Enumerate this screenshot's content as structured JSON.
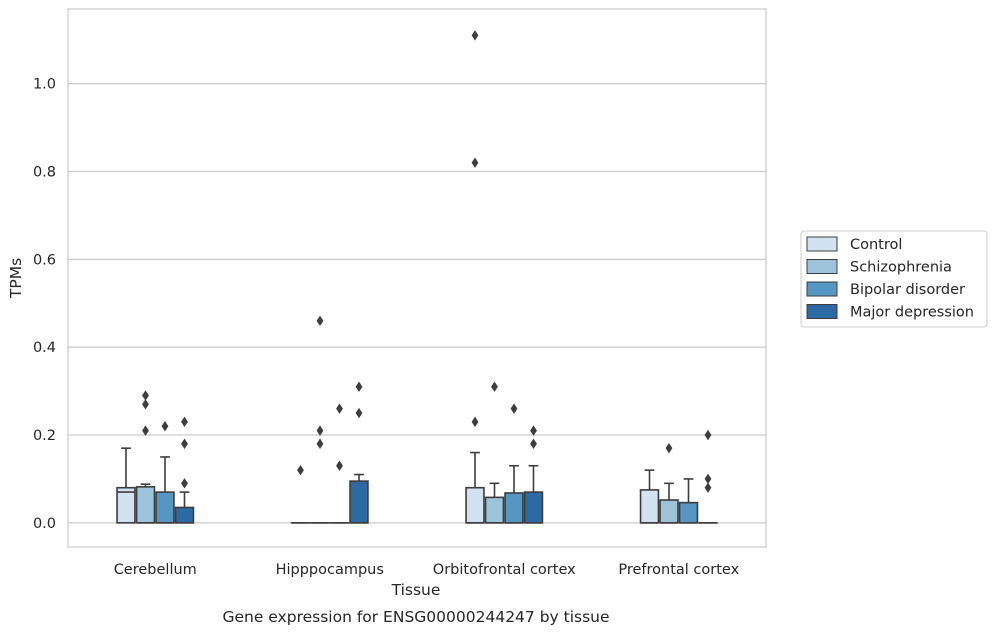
{
  "caption": "Gene expression for ENSG00000244247 by tissue",
  "chart_data": {
    "type": "box",
    "title": "",
    "xlabel": "Tissue",
    "ylabel": "TPMs",
    "categories": [
      "Cerebellum",
      "Hipppocampus",
      "Orbitofrontal cortex",
      "Prefrontal cortex"
    ],
    "ylim": [
      -0.055,
      1.17
    ],
    "yticks": [
      "0.0",
      "0.2",
      "0.4",
      "0.6",
      "0.8",
      "1.0"
    ],
    "ytick_values": [
      0,
      0.2,
      0.4,
      0.6,
      0.8,
      1.0
    ],
    "grid": true,
    "legend_position": "right",
    "series": [
      {
        "name": "Control",
        "color": "#d1e2f0",
        "boxes": [
          {
            "q1": 0,
            "median": 0.07,
            "q3": 0.08,
            "whisker_low": 0,
            "whisker_high": 0.17,
            "outliers": []
          },
          {
            "q1": 0,
            "median": 0,
            "q3": 0,
            "whisker_low": 0,
            "whisker_high": 0,
            "outliers": [
              0.12
            ]
          },
          {
            "q1": 0,
            "median": 0,
            "q3": 0.08,
            "whisker_low": 0,
            "whisker_high": 0.16,
            "outliers": [
              0.23,
              0.82,
              1.11
            ]
          },
          {
            "q1": 0,
            "median": 0,
            "q3": 0.075,
            "whisker_low": 0,
            "whisker_high": 0.12,
            "outliers": []
          }
        ]
      },
      {
        "name": "Schizophrenia",
        "color": "#9dc3db",
        "boxes": [
          {
            "q1": 0,
            "median": 0,
            "q3": 0.082,
            "whisker_low": 0,
            "whisker_high": 0.088,
            "outliers": [
              0.21,
              0.27,
              0.29
            ]
          },
          {
            "q1": 0,
            "median": 0,
            "q3": 0,
            "whisker_low": 0,
            "whisker_high": 0,
            "outliers": [
              0.18,
              0.21,
              0.46
            ]
          },
          {
            "q1": 0,
            "median": 0,
            "q3": 0.058,
            "whisker_low": 0,
            "whisker_high": 0.09,
            "outliers": [
              0.31
            ]
          },
          {
            "q1": 0,
            "median": 0,
            "q3": 0.052,
            "whisker_low": 0,
            "whisker_high": 0.09,
            "outliers": [
              0.17
            ]
          }
        ]
      },
      {
        "name": "Bipolar disorder",
        "color": "#5596c3",
        "boxes": [
          {
            "q1": 0,
            "median": 0,
            "q3": 0.07,
            "whisker_low": 0,
            "whisker_high": 0.15,
            "outliers": [
              0.22
            ]
          },
          {
            "q1": 0,
            "median": 0,
            "q3": 0,
            "whisker_low": 0,
            "whisker_high": 0,
            "outliers": [
              0.13,
              0.26
            ]
          },
          {
            "q1": 0,
            "median": 0,
            "q3": 0.068,
            "whisker_low": 0,
            "whisker_high": 0.13,
            "outliers": [
              0.26
            ]
          },
          {
            "q1": 0,
            "median": 0,
            "q3": 0.046,
            "whisker_low": 0,
            "whisker_high": 0.1,
            "outliers": []
          }
        ]
      },
      {
        "name": "Major depression",
        "color": "#2c6aa6",
        "boxes": [
          {
            "q1": 0,
            "median": 0,
            "q3": 0.035,
            "whisker_low": 0,
            "whisker_high": 0.07,
            "outliers": [
              0.09,
              0.18,
              0.23
            ]
          },
          {
            "q1": 0,
            "median": 0,
            "q3": 0.095,
            "whisker_low": 0,
            "whisker_high": 0.11,
            "outliers": [
              0.25,
              0.31
            ]
          },
          {
            "q1": 0,
            "median": 0,
            "q3": 0.07,
            "whisker_low": 0,
            "whisker_high": 0.13,
            "outliers": [
              0.18,
              0.21
            ]
          },
          {
            "q1": 0,
            "median": 0,
            "q3": 0,
            "whisker_low": 0,
            "whisker_high": 0,
            "outliers": [
              0.08,
              0.1,
              0.2
            ]
          }
        ]
      }
    ]
  }
}
